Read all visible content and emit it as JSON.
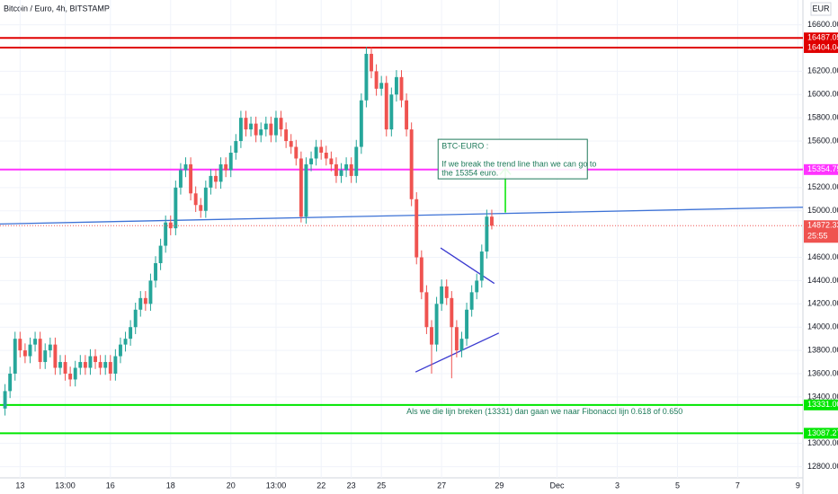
{
  "chart_data": {
    "type": "candlestick",
    "title": "Bitcoin / Euro, 4h, BITSTAMP",
    "currency": "EUR",
    "up_color": "#26a69a",
    "down_color": "#ef5350",
    "open": [
      13300,
      13450,
      13600,
      13900,
      13800,
      13750,
      13850,
      13900,
      13700,
      13800,
      13850,
      13650,
      13700,
      13600,
      13550,
      13650,
      13700,
      13650,
      13750,
      13700,
      13650,
      13700,
      13600,
      13750,
      13850,
      13900,
      14000,
      14150,
      14250,
      14200,
      14400,
      14550,
      14700,
      14900,
      14850,
      15200,
      15350,
      15400,
      15150,
      15050,
      15000,
      15200,
      15300,
      15250,
      15400,
      15350,
      15500,
      15600,
      15800,
      15700,
      15750,
      15650,
      15700,
      15750,
      15650,
      15800,
      15700,
      15600,
      15550,
      15450,
      14950,
      15400,
      15450,
      15550,
      15500,
      15450,
      15400,
      15300,
      15350,
      15400,
      15300,
      15550,
      15950,
      16350,
      16200,
      16050,
      16100,
      15700,
      16000,
      16150,
      15950,
      15700,
      15100,
      14600,
      14300,
      14000,
      13850,
      14200,
      14350,
      14250,
      14000,
      13800,
      13900,
      14150,
      14300,
      14400,
      14650,
      14950
    ],
    "high": [
      13510,
      13660,
      13960,
      13960,
      13860,
      13910,
      13960,
      13960,
      13860,
      13910,
      13910,
      13760,
      13760,
      13660,
      13710,
      13760,
      13760,
      13810,
      13810,
      13760,
      13760,
      13760,
      13810,
      13910,
      13960,
      14060,
      14210,
      14310,
      14310,
      14460,
      14610,
      14760,
      14960,
      14960,
      15260,
      15410,
      15460,
      15460,
      15210,
      15110,
      15260,
      15360,
      15360,
      15460,
      15460,
      15560,
      15660,
      15860,
      15860,
      15810,
      15810,
      15760,
      15810,
      15810,
      15860,
      15860,
      15760,
      15660,
      15610,
      15510,
      15460,
      15510,
      15610,
      15610,
      15560,
      15510,
      15460,
      15410,
      15460,
      15460,
      15610,
      16010,
      16410,
      16410,
      16260,
      16160,
      16160,
      16060,
      16210,
      16210,
      16010,
      15760,
      15160,
      14660,
      14360,
      14060,
      14260,
      14410,
      14410,
      14310,
      14060,
      13960,
      14210,
      14360,
      14460,
      14710,
      15010,
      15010
    ],
    "low": [
      13240,
      13390,
      13540,
      13740,
      13690,
      13690,
      13790,
      13640,
      13640,
      13740,
      13590,
      13590,
      13540,
      13490,
      13490,
      13590,
      13590,
      13590,
      13640,
      13590,
      13590,
      13540,
      13540,
      13690,
      13790,
      13840,
      13940,
      14090,
      14140,
      14140,
      14340,
      14490,
      14640,
      14790,
      14790,
      15140,
      15290,
      15090,
      14990,
      14940,
      14940,
      15140,
      15190,
      15190,
      15290,
      15290,
      15440,
      15540,
      15640,
      15640,
      15590,
      15590,
      15640,
      15590,
      15590,
      15640,
      15540,
      15490,
      15390,
      14900,
      14890,
      15340,
      15390,
      15440,
      15390,
      15340,
      15240,
      15240,
      15290,
      15240,
      15240,
      15490,
      15890,
      16140,
      15990,
      15990,
      15640,
      15640,
      15940,
      15890,
      15640,
      15040,
      14540,
      14240,
      13940,
      13600,
      13790,
      14140,
      14190,
      13560,
      13740,
      13740,
      13840,
      14090,
      14240,
      14340,
      14590,
      14840
    ],
    "close": [
      13450,
      13600,
      13900,
      13800,
      13750,
      13850,
      13900,
      13700,
      13800,
      13850,
      13650,
      13700,
      13600,
      13550,
      13650,
      13700,
      13650,
      13750,
      13700,
      13650,
      13700,
      13600,
      13750,
      13850,
      13900,
      14000,
      14150,
      14250,
      14200,
      14400,
      14550,
      14700,
      14900,
      14850,
      15200,
      15350,
      15400,
      15150,
      15050,
      15000,
      15200,
      15300,
      15250,
      15400,
      15350,
      15500,
      15600,
      15800,
      15700,
      15750,
      15650,
      15700,
      15750,
      15650,
      15800,
      15700,
      15600,
      15550,
      15450,
      14950,
      15400,
      15450,
      15550,
      15500,
      15450,
      15400,
      15300,
      15350,
      15400,
      15300,
      15550,
      15950,
      16350,
      16200,
      16050,
      16100,
      15700,
      16000,
      16150,
      15950,
      15700,
      15100,
      14600,
      14300,
      14000,
      13850,
      14200,
      14350,
      14250,
      14000,
      13800,
      13900,
      14150,
      14300,
      14400,
      14650,
      14950,
      14872.33
    ],
    "xlim": [
      -1,
      159
    ],
    "xticks": [
      {
        "value": 3,
        "label": "13"
      },
      {
        "value": 12,
        "label": "13:00"
      },
      {
        "value": 21,
        "label": "16"
      },
      {
        "value": 33,
        "label": "18"
      },
      {
        "value": 45,
        "label": "20"
      },
      {
        "value": 54,
        "label": "13:00"
      },
      {
        "value": 63,
        "label": "22"
      },
      {
        "value": 69,
        "label": "23"
      },
      {
        "value": 75,
        "label": "25"
      },
      {
        "value": 87,
        "label": "27"
      },
      {
        "value": 98.5,
        "label": "29"
      },
      {
        "value": 110,
        "label": "Dec"
      },
      {
        "value": 122,
        "label": "3"
      },
      {
        "value": 134,
        "label": "5"
      },
      {
        "value": 146,
        "label": "7"
      },
      {
        "value": 158,
        "label": "9"
      }
    ],
    "ylim": [
      12704,
      16813
    ],
    "yticks": [
      {
        "value": 16600,
        "label": "16600.00"
      },
      {
        "value": 16200,
        "label": "16200.00"
      },
      {
        "value": 16000,
        "label": "16000.00"
      },
      {
        "value": 15800,
        "label": "15800.00"
      },
      {
        "value": 15600,
        "label": "15600.00"
      },
      {
        "value": 15200,
        "label": "15200.00"
      },
      {
        "value": 15000,
        "label": "15000.00"
      },
      {
        "value": 14600,
        "label": "14600.00"
      },
      {
        "value": 14400,
        "label": "14400.00"
      },
      {
        "value": 14200,
        "label": "14200.00"
      },
      {
        "value": 14000,
        "label": "14000.00"
      },
      {
        "value": 13800,
        "label": "13800.00"
      },
      {
        "value": 13600,
        "label": "13600.00"
      },
      {
        "value": 13400,
        "label": "13400.00"
      },
      {
        "value": 13000,
        "label": "13000.00"
      },
      {
        "value": 12800,
        "label": "12800.00"
      }
    ],
    "hlines": [
      {
        "value": 16487.05,
        "label": "16487.05",
        "color": "#e00000"
      },
      {
        "value": 16404.04,
        "label": "16404.04",
        "color": "#e00000"
      },
      {
        "value": 15354.75,
        "label": "15354.75",
        "color": "#ff33ff"
      },
      {
        "value": 13331,
        "label": "13331.00",
        "color": "#00e600"
      },
      {
        "value": 13087.27,
        "label": "13087.27",
        "color": "#00e600"
      }
    ],
    "last_price": 14872.33,
    "countdown": "25:55",
    "trend_lines": [
      {
        "color": "#3d72d6",
        "x": [
          -1,
          159
        ],
        "y": [
          14887,
          15031
        ]
      },
      {
        "color": "#3a3ad0",
        "x": [
          86.8,
          97.5
        ],
        "y": [
          14681,
          14376
        ]
      },
      {
        "color": "#3a3ad0",
        "x": [
          81.8,
          98.4
        ],
        "y": [
          13614,
          13949
        ]
      }
    ],
    "arrow": {
      "color": "#00e600",
      "x": 99.7,
      "y": [
        14985,
        15366
      ]
    },
    "note_box": {
      "lines": [
        "BTC-EURO :",
        "If we break the trend line than we can go to",
        "the 15354 euro."
      ],
      "x": 86.3,
      "y": 15615
    },
    "note_bottom": {
      "text": "Als we die lijn breken (13331) dan gaan we naar Fibonacci lijn 0.618 of 0.650",
      "x": 80,
      "y": 13270
    }
  }
}
